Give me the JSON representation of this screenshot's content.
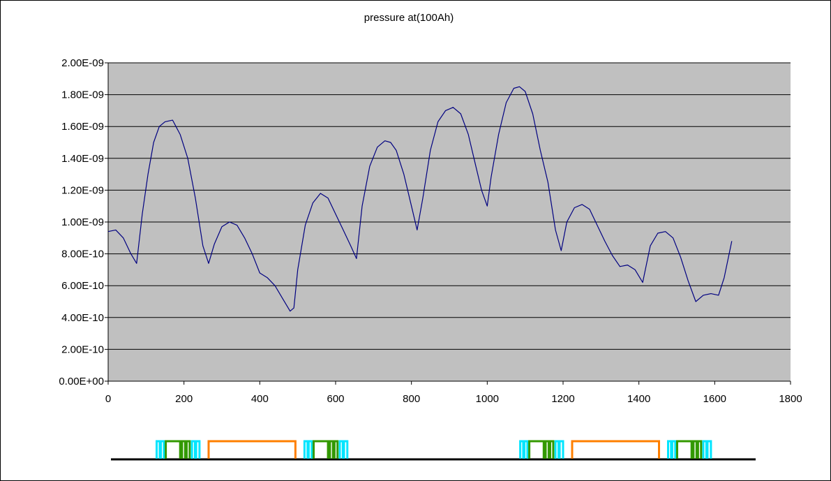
{
  "chart_data": {
    "type": "line",
    "title": "pressure at(100Ah)",
    "xlabel": "",
    "ylabel": "",
    "xlim": [
      0,
      1800
    ],
    "ylim": [
      0,
      2e-09
    ],
    "x_ticks": [
      0,
      200,
      400,
      600,
      800,
      1000,
      1200,
      1400,
      1600,
      1800
    ],
    "x_tick_labels": [
      "0",
      "200",
      "400",
      "600",
      "800",
      "1000",
      "1200",
      "1400",
      "1600",
      "1800"
    ],
    "y_ticks": [
      0,
      2e-10,
      4e-10,
      6e-10,
      8e-10,
      1e-09,
      1.2e-09,
      1.4e-09,
      1.6e-09,
      1.8e-09,
      2e-09
    ],
    "y_tick_labels": [
      "0.00E+00",
      "2.00E-10",
      "4.00E-10",
      "6.00E-10",
      "8.00E-10",
      "1.00E-09",
      "1.20E-09",
      "1.40E-09",
      "1.60E-09",
      "1.80E-09",
      "2.00E-09"
    ],
    "grid": "horizontal",
    "plot_background": "#C0C0C0",
    "series": [
      {
        "color": "#000080",
        "x": [
          0,
          20,
          40,
          60,
          75,
          90,
          105,
          120,
          135,
          150,
          170,
          190,
          210,
          230,
          250,
          265,
          280,
          300,
          320,
          340,
          360,
          380,
          400,
          420,
          440,
          460,
          480,
          490,
          500,
          520,
          540,
          560,
          580,
          600,
          620,
          640,
          655,
          670,
          690,
          710,
          730,
          745,
          760,
          780,
          800,
          815,
          830,
          850,
          870,
          890,
          910,
          930,
          950,
          970,
          985,
          1000,
          1010,
          1030,
          1050,
          1070,
          1085,
          1100,
          1120,
          1140,
          1160,
          1180,
          1195,
          1210,
          1230,
          1250,
          1270,
          1290,
          1310,
          1330,
          1350,
          1370,
          1390,
          1410,
          1430,
          1450,
          1470,
          1490,
          1510,
          1530,
          1550,
          1570,
          1590,
          1610,
          1625,
          1645
        ],
        "y": [
          9.4e-10,
          9.5e-10,
          9e-10,
          8e-10,
          7.4e-10,
          1.05e-09,
          1.3e-09,
          1.5e-09,
          1.6e-09,
          1.63e-09,
          1.64e-09,
          1.55e-09,
          1.4e-09,
          1.15e-09,
          8.5e-10,
          7.4e-10,
          8.6e-10,
          9.7e-10,
          1e-09,
          9.8e-10,
          9e-10,
          8e-10,
          6.8e-10,
          6.5e-10,
          6e-10,
          5.2e-10,
          4.4e-10,
          4.6e-10,
          7e-10,
          9.8e-10,
          1.12e-09,
          1.18e-09,
          1.15e-09,
          1.05e-09,
          9.5e-10,
          8.5e-10,
          7.7e-10,
          1.1e-09,
          1.35e-09,
          1.47e-09,
          1.51e-09,
          1.5e-09,
          1.45e-09,
          1.3e-09,
          1.1e-09,
          9.5e-10,
          1.15e-09,
          1.45e-09,
          1.63e-09,
          1.7e-09,
          1.72e-09,
          1.68e-09,
          1.55e-09,
          1.35e-09,
          1.2e-09,
          1.1e-09,
          1.28e-09,
          1.55e-09,
          1.75e-09,
          1.84e-09,
          1.85e-09,
          1.82e-09,
          1.68e-09,
          1.45e-09,
          1.25e-09,
          9.5e-10,
          8.2e-10,
          1e-09,
          1.09e-09,
          1.11e-09,
          1.08e-09,
          9.8e-10,
          8.8e-10,
          7.9e-10,
          7.2e-10,
          7.3e-10,
          7e-10,
          6.2e-10,
          8.5e-10,
          9.3e-10,
          9.4e-10,
          9e-10,
          7.8e-10,
          6.3e-10,
          5e-10,
          5.4e-10,
          5.5e-10,
          5.4e-10,
          6.5e-10,
          8.8e-10
        ]
      }
    ]
  },
  "timeline": {
    "base_color": "#000000",
    "x_range": [
      0,
      1800
    ],
    "segments": [
      {
        "color": "#00E5FF",
        "x0": 128,
        "x1": 136,
        "level": "high"
      },
      {
        "color": "#00E5FF",
        "x0": 139,
        "x1": 147,
        "level": "high"
      },
      {
        "color": "#339900",
        "x0": 152,
        "x1": 190,
        "level": "high"
      },
      {
        "color": "#339900",
        "x0": 195,
        "x1": 203,
        "level": "high"
      },
      {
        "color": "#339900",
        "x0": 207,
        "x1": 215,
        "level": "high"
      },
      {
        "color": "#00E5FF",
        "x0": 221,
        "x1": 229,
        "level": "high"
      },
      {
        "color": "#00E5FF",
        "x0": 232,
        "x1": 241,
        "level": "high"
      },
      {
        "color": "#FF7F00",
        "x0": 265,
        "x1": 494,
        "level": "high"
      },
      {
        "color": "#00E5FF",
        "x0": 518,
        "x1": 526,
        "level": "high"
      },
      {
        "color": "#00E5FF",
        "x0": 529,
        "x1": 537,
        "level": "high"
      },
      {
        "color": "#339900",
        "x0": 542,
        "x1": 580,
        "level": "high"
      },
      {
        "color": "#339900",
        "x0": 585,
        "x1": 593,
        "level": "high"
      },
      {
        "color": "#339900",
        "x0": 597,
        "x1": 605,
        "level": "high"
      },
      {
        "color": "#00E5FF",
        "x0": 611,
        "x1": 619,
        "level": "high"
      },
      {
        "color": "#00E5FF",
        "x0": 622,
        "x1": 631,
        "level": "high"
      },
      {
        "color": "#00E5FF",
        "x0": 1087,
        "x1": 1095,
        "level": "high"
      },
      {
        "color": "#00E5FF",
        "x0": 1098,
        "x1": 1106,
        "level": "high"
      },
      {
        "color": "#339900",
        "x0": 1111,
        "x1": 1149,
        "level": "high"
      },
      {
        "color": "#339900",
        "x0": 1154,
        "x1": 1162,
        "level": "high"
      },
      {
        "color": "#339900",
        "x0": 1166,
        "x1": 1174,
        "level": "high"
      },
      {
        "color": "#00E5FF",
        "x0": 1180,
        "x1": 1188,
        "level": "high"
      },
      {
        "color": "#00E5FF",
        "x0": 1191,
        "x1": 1200,
        "level": "high"
      },
      {
        "color": "#FF7F00",
        "x0": 1224,
        "x1": 1453,
        "level": "high"
      },
      {
        "color": "#00E5FF",
        "x0": 1477,
        "x1": 1485,
        "level": "high"
      },
      {
        "color": "#00E5FF",
        "x0": 1488,
        "x1": 1496,
        "level": "high"
      },
      {
        "color": "#339900",
        "x0": 1501,
        "x1": 1539,
        "level": "high"
      },
      {
        "color": "#339900",
        "x0": 1544,
        "x1": 1552,
        "level": "high"
      },
      {
        "color": "#339900",
        "x0": 1556,
        "x1": 1564,
        "level": "high"
      },
      {
        "color": "#00E5FF",
        "x0": 1570,
        "x1": 1578,
        "level": "high"
      },
      {
        "color": "#00E5FF",
        "x0": 1581,
        "x1": 1590,
        "level": "high"
      }
    ]
  }
}
